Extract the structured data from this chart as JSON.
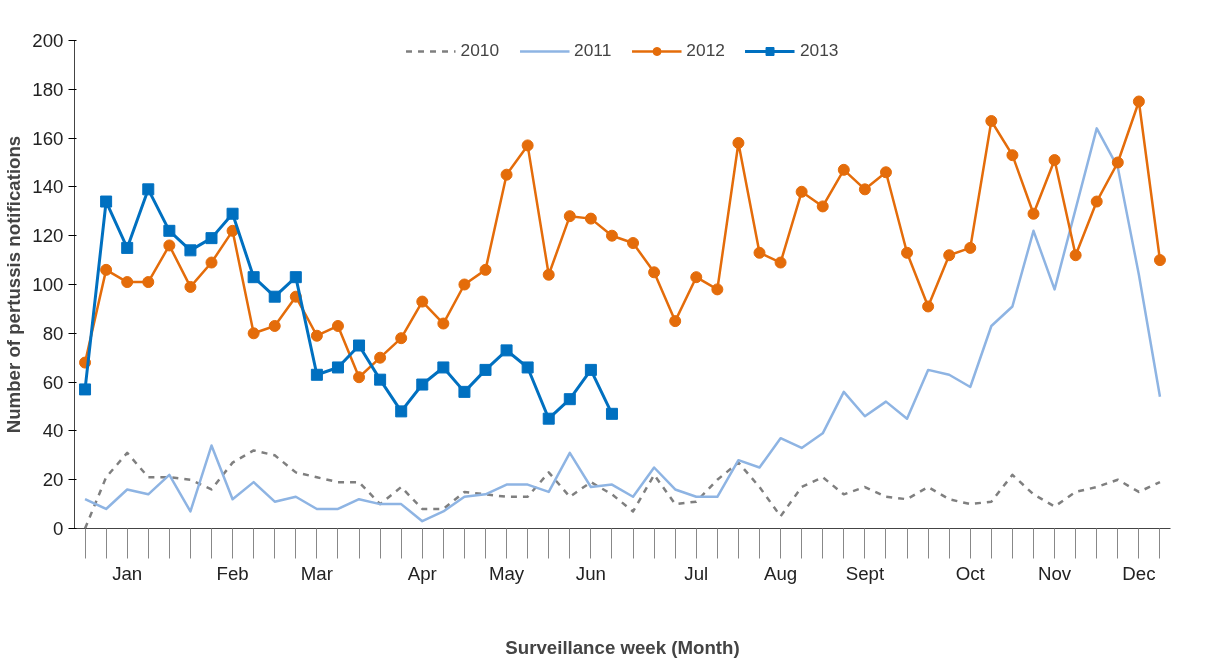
{
  "chart_data": {
    "type": "line",
    "xlabel": "Surveillance week (Month)",
    "ylabel": "Number of pertussis notifications",
    "categories": [
      null,
      null,
      "Jan",
      null,
      null,
      null,
      null,
      "Feb",
      null,
      null,
      null,
      "Mar",
      null,
      null,
      null,
      null,
      "Apr",
      null,
      null,
      null,
      "May",
      null,
      null,
      null,
      "Jun",
      null,
      null,
      null,
      null,
      "Jul",
      null,
      null,
      null,
      "Aug",
      null,
      null,
      null,
      "Sept",
      null,
      null,
      null,
      null,
      "Oct",
      null,
      null,
      null,
      "Nov",
      null,
      null,
      null,
      "Dec",
      null
    ],
    "ylim": [
      0,
      200
    ],
    "yticks": [
      0,
      20,
      40,
      60,
      80,
      100,
      120,
      140,
      160,
      180,
      200
    ],
    "grid": false,
    "legend": "top",
    "series": [
      {
        "name": "2010",
        "color": "#7f7f7f",
        "line_style": "dashed",
        "marker": "none",
        "values": [
          0,
          21,
          31,
          21,
          21,
          20,
          16,
          27,
          32,
          30,
          23,
          21,
          19,
          19,
          10,
          17,
          8,
          8,
          15,
          14,
          13,
          13,
          23,
          13,
          19,
          14,
          7,
          22,
          10,
          11,
          20,
          27,
          17,
          5,
          17,
          21,
          14,
          17,
          13,
          12,
          17,
          12,
          10,
          11,
          22,
          14,
          9,
          15,
          17,
          20,
          15,
          19
        ]
      },
      {
        "name": "2011",
        "color": "#8eb4e3",
        "line_style": "solid",
        "marker": "none",
        "values": [
          12,
          8,
          16,
          14,
          22,
          7,
          34,
          12,
          19,
          11,
          13,
          8,
          8,
          12,
          10,
          10,
          3,
          7,
          13,
          14,
          18,
          18,
          15,
          31,
          17,
          18,
          13,
          25,
          16,
          13,
          13,
          28,
          25,
          37,
          33,
          39,
          56,
          46,
          52,
          45,
          65,
          63,
          58,
          83,
          91,
          122,
          98,
          131,
          164,
          148,
          104,
          54
        ]
      },
      {
        "name": "2012",
        "color": "#e46c0a",
        "line_style": "solid",
        "marker": "circle",
        "values": [
          68,
          106,
          101,
          101,
          116,
          99,
          109,
          122,
          80,
          83,
          95,
          79,
          83,
          62,
          70,
          78,
          93,
          84,
          100,
          106,
          145,
          157,
          104,
          128,
          127,
          120,
          117,
          105,
          85,
          103,
          98,
          158,
          113,
          109,
          138,
          132,
          147,
          139,
          146,
          113,
          91,
          112,
          115,
          167,
          153,
          129,
          151,
          112,
          134,
          150,
          175,
          110
        ]
      },
      {
        "name": "2013",
        "color": "#0070c0",
        "line_style": "solid",
        "marker": "square",
        "values": [
          57,
          134,
          115,
          139,
          122,
          114,
          119,
          129,
          103,
          95,
          103,
          63,
          66,
          75,
          61,
          48,
          59,
          66,
          56,
          65,
          73,
          66,
          45,
          53,
          65,
          47,
          null,
          null,
          null,
          null,
          null,
          null,
          null,
          null,
          null,
          null,
          null,
          null,
          null,
          null,
          null,
          null,
          null,
          null,
          null,
          null,
          null,
          null,
          null,
          null,
          null,
          null
        ]
      }
    ]
  }
}
